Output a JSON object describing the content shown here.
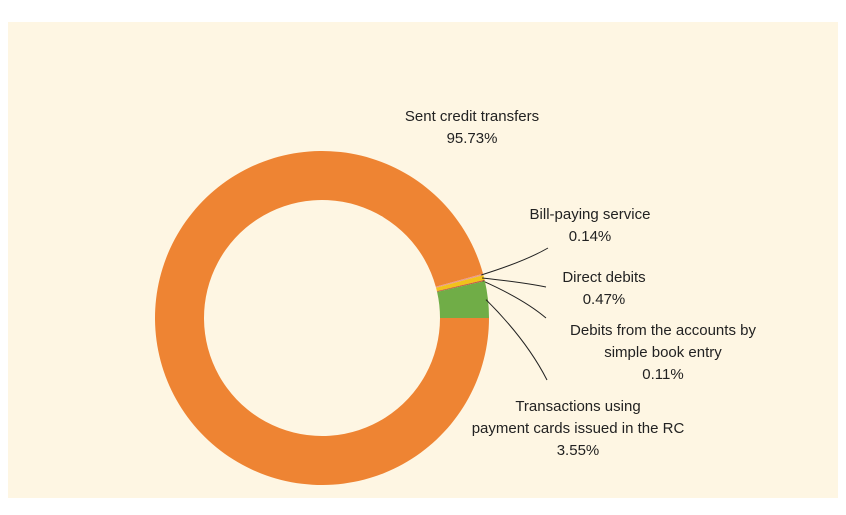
{
  "chart_data": {
    "type": "donut",
    "categories": [
      "Sent credit transfers",
      "Bill-paying service",
      "Direct debits",
      "Debits from the accounts by\nsimple book entry",
      "Transactions using\npayment cards issued in the RC"
    ],
    "values": [
      95.73,
      0.14,
      0.47,
      0.11,
      3.55
    ],
    "value_labels": [
      "95.73%",
      "0.14%",
      "0.47%",
      "0.11%",
      "3.55%"
    ],
    "colors": [
      "#ee8433",
      "#e99a8c",
      "#f2c21b",
      "#c9563e",
      "#70ad47"
    ]
  }
}
